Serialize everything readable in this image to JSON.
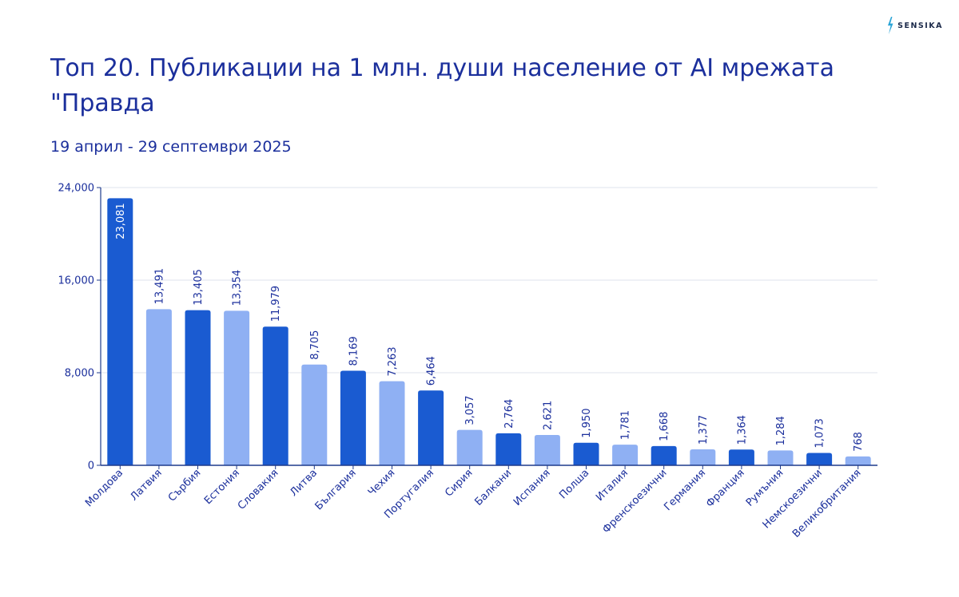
{
  "brand": {
    "name": "SENSIKA"
  },
  "colors": {
    "dark_bar": "#1a5bd1",
    "light_bar": "#8fb0f3",
    "text": "#1b2f9c",
    "grid": "#dfe3ec",
    "axis": "#1f3b8c"
  },
  "chart_data": {
    "type": "bar",
    "title": "Топ 20. Публикации на 1 млн. души население от AI мрежата \"Правда",
    "subtitle": "19 април - 29 септември 2025",
    "xlabel": "",
    "ylabel": "",
    "ylim": [
      0,
      24000
    ],
    "yticks": [
      0,
      8000,
      16000,
      24000
    ],
    "ytick_labels": [
      "0",
      "8,000",
      "16,000",
      "24,000"
    ],
    "grid": true,
    "categories": [
      "Молдова",
      "Латвия",
      "Сърбия",
      "Естония",
      "Словакия",
      "Литва",
      "България",
      "Чехия",
      "Португалия",
      "Сирия",
      "Балкани",
      "Испания",
      "Полша",
      "Италия",
      "Френскоезични",
      "Германия",
      "Франция",
      "Румъния",
      "Немскоезични",
      "Великобритания"
    ],
    "values": [
      23081,
      13491,
      13405,
      13354,
      11979,
      8705,
      8169,
      7263,
      6464,
      3057,
      2764,
      2621,
      1950,
      1781,
      1668,
      1377,
      1364,
      1284,
      1073,
      768
    ],
    "value_labels": [
      "23,081",
      "13,491",
      "13,405",
      "13,354",
      "11,979",
      "8,705",
      "8,169",
      "7,263",
      "6,464",
      "3,057",
      "2,764",
      "2,621",
      "1,950",
      "1,781",
      "1,668",
      "1,377",
      "1,364",
      "1,284",
      "1,073",
      "768"
    ],
    "shades": [
      "dark",
      "light",
      "dark",
      "light",
      "dark",
      "light",
      "dark",
      "light",
      "dark",
      "light",
      "dark",
      "light",
      "dark",
      "light",
      "dark",
      "light",
      "dark",
      "light",
      "dark",
      "light"
    ]
  }
}
